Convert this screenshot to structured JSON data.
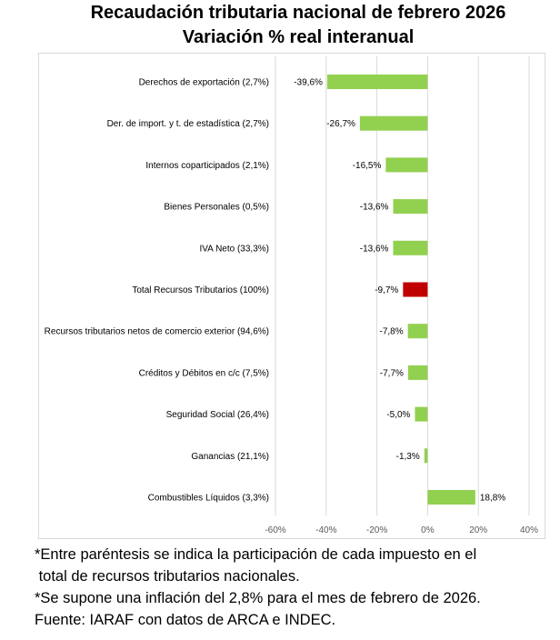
{
  "chart_data": {
    "type": "bar",
    "orientation": "horizontal",
    "title": "Recaudación tributaria nacional de febrero 2026",
    "subtitle": "Variación % real interanual",
    "categories": [
      "Derechos de exportación (2,7%)",
      "Der. de import. y t. de estadística (2,7%)",
      "Internos coparticipados (2,1%)",
      "Bienes Personales (0,5%)",
      "IVA Neto (33,3%)",
      "Total Recursos Tributarios (100%)",
      "Recursos tributarios netos de comercio exterior (94,6%)",
      "Créditos y Débitos en c/c (7,5%)",
      "Seguridad Social (26,4%)",
      "Ganancias (21,1%)",
      "Combustibles Líquidos (3,3%)"
    ],
    "values": [
      -39.6,
      -26.7,
      -16.5,
      -13.6,
      -13.6,
      -9.7,
      -7.8,
      -7.7,
      -5.0,
      -1.3,
      18.8
    ],
    "data_labels": [
      "-39,6%",
      "-26,7%",
      "-16,5%",
      "-13,6%",
      "-13,6%",
      "-9,7%",
      "-7,8%",
      "-7,7%",
      "-5,0%",
      "-1,3%",
      "18,8%"
    ],
    "highlight_index": 5,
    "colors": {
      "bar": "#92d050",
      "highlight": "#c00000",
      "grid": "#d9d9d9"
    },
    "xlim": [
      -60,
      40
    ],
    "xticks": [
      -60,
      -40,
      -20,
      0,
      20,
      40
    ],
    "xtick_labels": [
      "-60%",
      "-40%",
      "-20%",
      "0%",
      "20%",
      "40%"
    ],
    "grid": true,
    "legend": "none"
  },
  "notes": [
    "*Entre paréntesis se indica la participación de cada impuesto en el",
    " total de recursos tributarios nacionales.",
    "*Se supone una inflación del 2,8% para el mes de febrero de 2026.",
    "Fuente: IARAF con datos de ARCA e INDEC."
  ]
}
